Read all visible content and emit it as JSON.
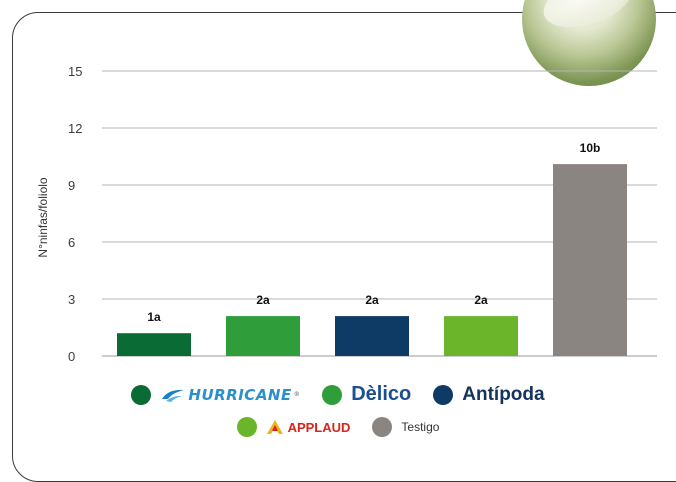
{
  "chart_data": {
    "type": "bar",
    "ylabel": "N°ninfas/foliolo",
    "ylim": [
      0,
      15
    ],
    "yticks": [
      0,
      3,
      6,
      9,
      12,
      15
    ],
    "grid": true,
    "categories": [
      "HURRICANE",
      "Dèlico",
      "Antípoda",
      "APPLAUD",
      "Testigo"
    ],
    "values": [
      1.2,
      2.1,
      2.1,
      2.1,
      10.1
    ],
    "data_labels": [
      "1a",
      "2a",
      "2a",
      "2a",
      "10b"
    ],
    "colors": [
      "#0b6b35",
      "#2e9d3a",
      "#0e3a66",
      "#6bb52b",
      "#8b8582"
    ],
    "legend_position": "bottom"
  },
  "legend": {
    "hurricane": "HURRICANE",
    "delico": "Dèlico",
    "antipoda": "Antípoda",
    "applaud": "APPLAUD",
    "testigo": "Testigo"
  },
  "icons": {
    "hurricane": "hurricane-swirl-icon",
    "applaud": "applaud-logo-icon"
  }
}
